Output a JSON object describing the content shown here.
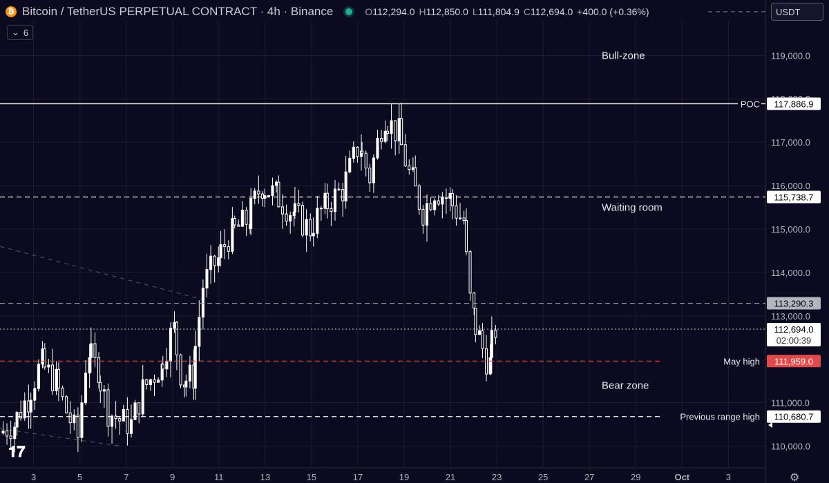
{
  "header": {
    "symbol": "Bitcoin / TetherUS PERPETUAL CONTRACT · 4h · Binance",
    "open_label": "O",
    "open": "112,294.0",
    "high_label": "H",
    "high": "112,850.0",
    "low_label": "L",
    "low": "111,804.9",
    "close_label": "C",
    "close": "112,694.0",
    "change": "+400.0 (+0.36%)"
  },
  "collapse": {
    "count": "6"
  },
  "currency": {
    "label": "USDT"
  },
  "colors": {
    "background": "#0b0b1f",
    "candle": "#ffffff",
    "grid": "#1c1c30",
    "may_high": "#e04a4a",
    "label_grey": "#b2b5be"
  },
  "icons": {
    "logo": "bitcoin-logo-icon",
    "settings": "gear-icon",
    "tv": "tradingview-logo-icon"
  },
  "chart_data": {
    "type": "candlestick",
    "y_ticks": [
      "119,000.0",
      "118,000.0",
      "117,000.0",
      "116,000.0",
      "115,000.0",
      "114,000.0",
      "113,000.0",
      "111,000.0",
      "110,000.0"
    ],
    "y_tick_values": [
      119000,
      118000,
      117000,
      116000,
      115000,
      114000,
      113000,
      111000,
      110000
    ],
    "y_range": [
      109500,
      119800
    ],
    "x_ticks": [
      "3",
      "5",
      "7",
      "9",
      "11",
      "13",
      "15",
      "17",
      "19",
      "21",
      "23",
      "25",
      "27",
      "29",
      "Oct",
      "3"
    ],
    "x_tick_days": [
      3,
      5,
      7,
      9,
      11,
      13,
      15,
      17,
      19,
      21,
      23,
      25,
      27,
      29,
      31,
      33
    ],
    "x_range_days": [
      1.55,
      34.6
    ],
    "levels": [
      {
        "price": 117886.9,
        "value": "117,886.9",
        "label": "POC",
        "style": "solid"
      },
      {
        "price": 115738.7,
        "value": "115,738.7",
        "label": "",
        "style": "dashed"
      },
      {
        "price": 113290.3,
        "value": "113,290.3",
        "label": "",
        "style": "dashed-grey"
      },
      {
        "price": 112694.0,
        "value": "112,694.0",
        "label": "",
        "style": "dotted-current",
        "countdown": "02:00:39"
      },
      {
        "price": 111959.0,
        "value": "111,959.0",
        "label": "May high",
        "style": "dashed-red"
      },
      {
        "price": 110680.7,
        "value": "110,680.7",
        "label": "Previous range high",
        "style": "dashed"
      }
    ],
    "zone_labels": [
      {
        "text": "Bull-zone",
        "price": 119000
      },
      {
        "text": "Waiting room",
        "price": 115500
      },
      {
        "text": "Bear zone",
        "price": 111400
      }
    ],
    "anchors": [
      [
        1.6,
        110300
      ],
      [
        2.2,
        110500
      ],
      [
        2.8,
        111100
      ],
      [
        3.4,
        111900
      ],
      [
        4.0,
        111500
      ],
      [
        4.5,
        110800
      ],
      [
        5.0,
        110200
      ],
      [
        5.4,
        112200
      ],
      [
        5.8,
        111800
      ],
      [
        6.3,
        110800
      ],
      [
        6.8,
        110600
      ],
      [
        7.3,
        110500
      ],
      [
        7.8,
        111300
      ],
      [
        8.5,
        111800
      ],
      [
        9.1,
        112700
      ],
      [
        9.5,
        111500
      ],
      [
        9.9,
        111600
      ],
      [
        10.4,
        113700
      ],
      [
        11.0,
        114300
      ],
      [
        11.6,
        114900
      ],
      [
        12.3,
        115200
      ],
      [
        12.9,
        116000
      ],
      [
        13.5,
        115800
      ],
      [
        14.2,
        115400
      ],
      [
        15.0,
        115000
      ],
      [
        15.6,
        115500
      ],
      [
        16.4,
        115900
      ],
      [
        17.1,
        116900
      ],
      [
        17.6,
        116200
      ],
      [
        18.2,
        117600
      ],
      [
        18.8,
        117200
      ],
      [
        19.4,
        116100
      ],
      [
        19.9,
        115400
      ],
      [
        20.4,
        115900
      ],
      [
        21.0,
        115700
      ],
      [
        21.6,
        115200
      ],
      [
        22.0,
        113000
      ],
      [
        22.3,
        112500
      ],
      [
        22.7,
        111900
      ],
      [
        23.0,
        112694
      ]
    ]
  }
}
